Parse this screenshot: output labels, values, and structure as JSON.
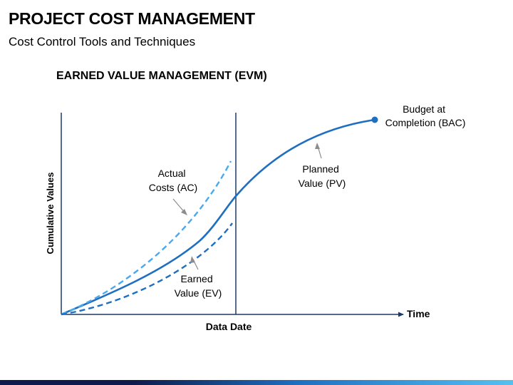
{
  "header": {
    "title": "PROJECT COST MANAGEMENT",
    "subtitle": "Cost Control Tools and Techniques"
  },
  "section": {
    "heading": "EARNED VALUE MANAGEMENT (EVM)"
  },
  "diagram": {
    "y_axis_label": "Cumulative Values",
    "x_axis_label": "Time",
    "data_date_label": "Data Date",
    "curves": [
      {
        "id": "pv",
        "label_lines": [
          "Planned",
          "Value (PV)"
        ],
        "style": "solid",
        "color": "#1f6fc0"
      },
      {
        "id": "ac",
        "label_lines": [
          "Actual",
          "Costs (AC)"
        ],
        "style": "dashed",
        "color": "#4aa8ee"
      },
      {
        "id": "ev",
        "label_lines": [
          "Earned",
          "Value (EV)"
        ],
        "style": "dashed",
        "color": "#1f6fc0"
      }
    ],
    "endpoint_label_lines": [
      "Budget at",
      "Completion (BAC)"
    ]
  },
  "colors": {
    "axis": "#1f3864",
    "pointer": "#8c8c8c",
    "bar_dark": "#0d1a4a",
    "bar_light": "#55c0f0"
  }
}
